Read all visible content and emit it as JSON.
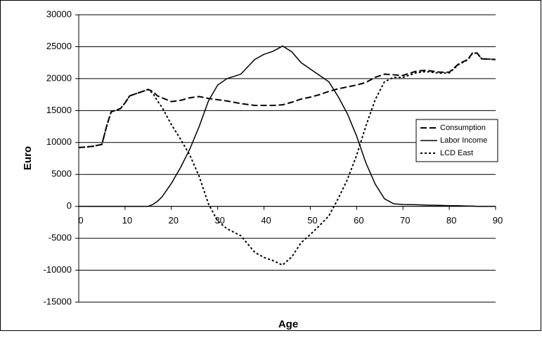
{
  "chart_data": {
    "type": "line",
    "x_label": "Age",
    "y_label": "Euro",
    "x": [
      0,
      3,
      5,
      6,
      7,
      9,
      10,
      11,
      13,
      15,
      16,
      17,
      18,
      20,
      22,
      24,
      26,
      28,
      30,
      32,
      35,
      38,
      40,
      42,
      44,
      46,
      48,
      50,
      52,
      54,
      56,
      58,
      60,
      62,
      64,
      66,
      68,
      70,
      73,
      75,
      78,
      80,
      82,
      84,
      85,
      86,
      87,
      90
    ],
    "series": [
      {
        "name": "Consumption",
        "color": "#000000",
        "style": "dashed",
        "values": [
          9200,
          9400,
          9700,
          12500,
          14800,
          15300,
          16200,
          17300,
          17800,
          18300,
          18000,
          17300,
          17000,
          16400,
          16600,
          17000,
          17200,
          16900,
          16700,
          16500,
          16100,
          15800,
          15800,
          15800,
          15900,
          16300,
          16800,
          17100,
          17500,
          18000,
          18400,
          18700,
          19000,
          19400,
          20200,
          20700,
          20600,
          20500,
          21200,
          21300,
          21000,
          21000,
          22300,
          23000,
          24000,
          24000,
          23100,
          23000
        ]
      },
      {
        "name": "Labor Income",
        "color": "#000000",
        "style": "solid",
        "values": [
          0,
          0,
          0,
          0,
          0,
          0,
          0,
          0,
          0,
          0,
          300,
          800,
          1500,
          3600,
          6100,
          9000,
          12500,
          16500,
          19000,
          20000,
          20700,
          23000,
          23800,
          24300,
          25100,
          24200,
          22500,
          21500,
          20500,
          19500,
          17200,
          14500,
          11000,
          6800,
          3500,
          1200,
          400,
          300,
          250,
          200,
          150,
          100,
          100,
          50,
          50,
          0,
          0,
          0
        ]
      },
      {
        "name": "LCD East",
        "color": "#000000",
        "style": "dotted",
        "values": [
          9200,
          9400,
          9700,
          12500,
          14800,
          15300,
          16200,
          17300,
          17800,
          18300,
          17700,
          16500,
          15500,
          12800,
          10500,
          8000,
          4700,
          400,
          -2300,
          -3500,
          -4600,
          -7200,
          -8000,
          -8500,
          -9200,
          -7900,
          -5700,
          -4400,
          -3000,
          -1500,
          1200,
          4200,
          8000,
          12600,
          16700,
          19500,
          20200,
          20200,
          20950,
          21100,
          20850,
          20900,
          22200,
          22950,
          23950,
          24000,
          23100,
          23000
        ]
      }
    ],
    "xlim": [
      0,
      90
    ],
    "xticks": [
      0,
      10,
      20,
      30,
      40,
      50,
      60,
      70,
      80,
      90
    ],
    "ylim": [
      -15000,
      30000
    ],
    "yticks": [
      -15000,
      -10000,
      -5000,
      0,
      5000,
      10000,
      15000,
      20000,
      25000,
      30000
    ],
    "grid": true,
    "legend": "right"
  }
}
